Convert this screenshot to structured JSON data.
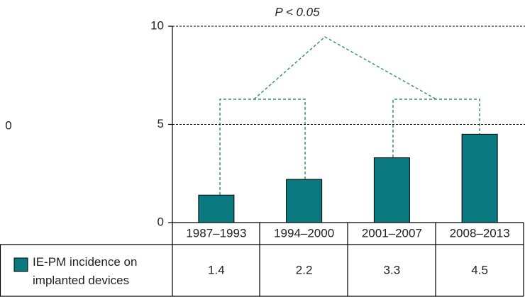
{
  "chart_data": {
    "type": "bar",
    "annotation": "P < 0.05",
    "edge_label": "0",
    "categories": [
      "1987–1993",
      "1994–2000",
      "2001–2007",
      "2008–2013"
    ],
    "series": [
      {
        "name": "IE-PM incidence on implanted devices",
        "color": "#0b7a80",
        "values": [
          1.4,
          2.2,
          3.3,
          4.5
        ]
      }
    ],
    "ylim": [
      0,
      10
    ],
    "yticks": [
      0,
      5,
      10
    ],
    "grid": true
  }
}
